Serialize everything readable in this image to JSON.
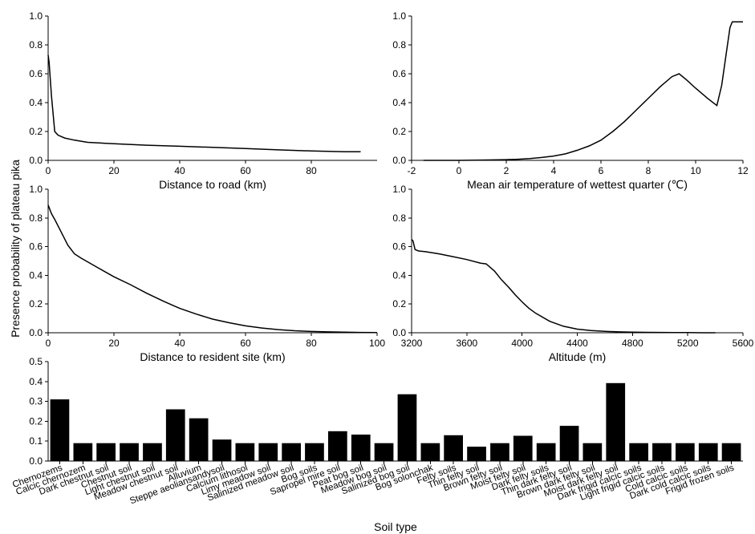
{
  "figure": {
    "shared_ylabel": "Presence probability of plateau pika"
  },
  "chart_data": [
    {
      "id": "road",
      "type": "line",
      "xlabel": "Distance to road (km)",
      "ylabel": "",
      "xlim": [
        0,
        100
      ],
      "ylim": [
        0,
        1.0
      ],
      "x_ticks": [
        0,
        20,
        40,
        60,
        80
      ],
      "y_ticks": [
        "0.0",
        "0.2",
        "0.4",
        "0.6",
        "0.8",
        "1.0"
      ],
      "series": [
        {
          "x": [
            0,
            0.3,
            1,
            2,
            3,
            5,
            8,
            12,
            20,
            30,
            40,
            50,
            60,
            70,
            80,
            90,
            95
          ],
          "y": [
            0.73,
            0.68,
            0.45,
            0.2,
            0.175,
            0.155,
            0.14,
            0.125,
            0.115,
            0.105,
            0.098,
            0.09,
            0.082,
            0.073,
            0.065,
            0.06,
            0.06
          ]
        }
      ]
    },
    {
      "id": "temperature",
      "type": "line",
      "xlabel": "Mean air temperature of wettest quarter (℃)",
      "ylabel": "",
      "xlim": [
        -2,
        12
      ],
      "ylim": [
        0,
        1.0
      ],
      "x_ticks": [
        -2,
        0,
        2,
        4,
        6,
        8,
        10,
        12
      ],
      "y_ticks": [
        "0.0",
        "0.2",
        "0.4",
        "0.6",
        "0.8",
        "1.0"
      ],
      "series": [
        {
          "x": [
            -1.5,
            0,
            1,
            2,
            2.5,
            3,
            3.5,
            4,
            4.5,
            5,
            5.5,
            6,
            6.5,
            7,
            7.5,
            8,
            8.5,
            9,
            9.3,
            9.6,
            10,
            10.5,
            10.9,
            11.1,
            11.3,
            11.45,
            11.55,
            12
          ],
          "y": [
            0.0,
            0.0,
            0.002,
            0.005,
            0.008,
            0.012,
            0.02,
            0.03,
            0.045,
            0.07,
            0.1,
            0.14,
            0.2,
            0.27,
            0.35,
            0.43,
            0.51,
            0.58,
            0.6,
            0.56,
            0.5,
            0.43,
            0.38,
            0.52,
            0.75,
            0.92,
            0.96,
            0.96
          ]
        }
      ]
    },
    {
      "id": "resident",
      "type": "line",
      "xlabel": "Distance to resident site (km)",
      "ylabel": "",
      "xlim": [
        0,
        100
      ],
      "ylim": [
        0,
        1.0
      ],
      "x_ticks": [
        0,
        20,
        40,
        60,
        80,
        100
      ],
      "y_ticks": [
        "0.0",
        "0.2",
        "0.4",
        "0.6",
        "0.8",
        "1.0"
      ],
      "series": [
        {
          "x": [
            0,
            1,
            2,
            4,
            6,
            8,
            10,
            15,
            20,
            25,
            30,
            35,
            40,
            45,
            50,
            55,
            60,
            65,
            70,
            75,
            80,
            85,
            90,
            95,
            100
          ],
          "y": [
            0.89,
            0.83,
            0.79,
            0.7,
            0.61,
            0.55,
            0.52,
            0.455,
            0.39,
            0.335,
            0.275,
            0.22,
            0.17,
            0.13,
            0.095,
            0.07,
            0.048,
            0.033,
            0.022,
            0.014,
            0.009,
            0.006,
            0.004,
            0.002,
            0.001
          ]
        }
      ]
    },
    {
      "id": "altitude",
      "type": "line",
      "xlabel": "Altitude (m)",
      "ylabel": "",
      "xlim": [
        3200,
        5600
      ],
      "ylim": [
        0,
        1.0
      ],
      "x_ticks": [
        3200,
        3600,
        4000,
        4400,
        4800,
        5200,
        5600
      ],
      "y_ticks": [
        "0.0",
        "0.2",
        "0.4",
        "0.6",
        "0.8",
        "1.0"
      ],
      "series": [
        {
          "x": [
            3200,
            3210,
            3225,
            3250,
            3300,
            3400,
            3500,
            3600,
            3700,
            3740,
            3800,
            3850,
            3900,
            3950,
            4000,
            4050,
            4100,
            4200,
            4300,
            4400,
            4500,
            4600,
            4700,
            4800,
            4900,
            5000,
            5100,
            5200,
            5300,
            5400
          ],
          "y": [
            0.65,
            0.64,
            0.58,
            0.57,
            0.565,
            0.55,
            0.53,
            0.51,
            0.485,
            0.48,
            0.43,
            0.37,
            0.32,
            0.265,
            0.215,
            0.17,
            0.135,
            0.08,
            0.045,
            0.025,
            0.015,
            0.01,
            0.006,
            0.004,
            0.003,
            0.002,
            0.001,
            0.001,
            0.0,
            0.0
          ]
        }
      ]
    },
    {
      "id": "soil",
      "type": "bar",
      "xlabel": "Soil type",
      "ylabel": "",
      "ylim": [
        0,
        0.5
      ],
      "y_ticks": [
        "0.0",
        "0.1",
        "0.2",
        "0.3",
        "0.4",
        "0.5"
      ],
      "categories": [
        "Chernozems",
        "Calcic chernozem",
        "Dark chestnut soil",
        "Chestnut soil",
        "Light chestnut soil",
        "Meadow chestnut soil",
        "Alluvium",
        "Steppe aeoliansandysoil",
        "Calcium lithosol",
        "Limy meadow soil",
        "Salinized meadow soil",
        "Bog soils",
        "Sapropel mire soil",
        "Peat bog soil",
        "Meadow bog soil",
        "Salinized bog soil",
        "Bog solonchak",
        "Felty soils",
        "Thin felty soil",
        "Brown felty soil",
        "Moist felty soil",
        "Dark felty soils",
        "Thin dark felty soil",
        "Brown dark felty soil",
        "Moist dark felty soil",
        "Dark frigid calcic soils",
        "Light frigid calcic soils",
        "Cold calcic soils",
        "Dark cold calcic soils",
        "Frigid frozen soils"
      ],
      "values": [
        0.31,
        0.09,
        0.09,
        0.09,
        0.09,
        0.26,
        0.215,
        0.108,
        0.09,
        0.09,
        0.09,
        0.09,
        0.15,
        0.133,
        0.09,
        0.336,
        0.09,
        0.13,
        0.072,
        0.09,
        0.127,
        0.09,
        0.177,
        0.09,
        0.392,
        0.09,
        0.09,
        0.09,
        0.09,
        0.09
      ]
    }
  ]
}
